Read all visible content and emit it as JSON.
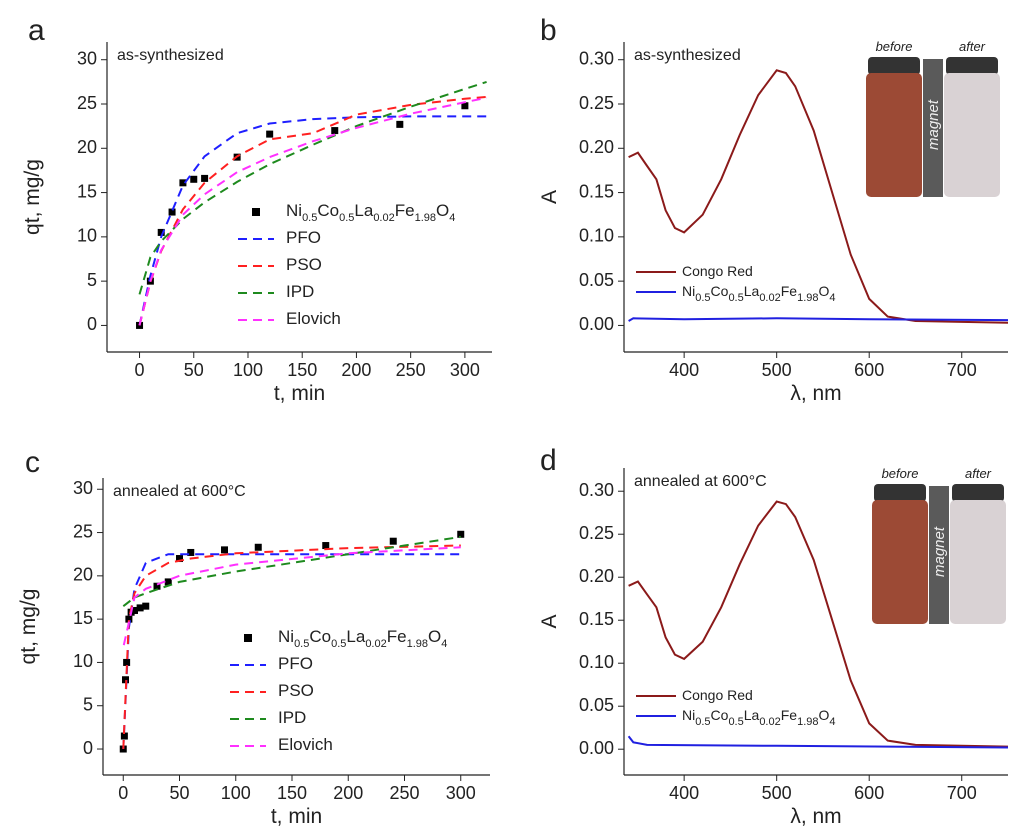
{
  "chart_data": [
    {
      "type": "scatter",
      "label": "a",
      "title": "as-synthesized",
      "xlabel": "t, min",
      "ylabel": "qt, mg/g",
      "xlim": [
        -30,
        325
      ],
      "ylim": [
        -3,
        32
      ],
      "xticks": [
        0,
        50,
        100,
        150,
        200,
        250,
        300
      ],
      "yticks": [
        0,
        5,
        10,
        15,
        20,
        25,
        30
      ],
      "series": [
        {
          "name": "Ni0.5Co0.5La0.02Fe1.98O4",
          "style": "markers",
          "color": "#000000",
          "x": [
            0,
            10,
            20,
            30,
            40,
            50,
            60,
            90,
            120,
            180,
            240,
            300
          ],
          "values": [
            0,
            5,
            10.5,
            12.8,
            16.1,
            16.5,
            16.6,
            19,
            21.6,
            22,
            22.7,
            24.8
          ]
        },
        {
          "name": "PFO",
          "style": "dashed",
          "color": "#1f1fff",
          "x": [
            0,
            10,
            20,
            40,
            60,
            90,
            120,
            160,
            200,
            250,
            300,
            320
          ],
          "values": [
            0,
            5.6,
            10,
            15.8,
            19.1,
            21.7,
            22.8,
            23.3,
            23.5,
            23.6,
            23.6,
            23.6
          ]
        },
        {
          "name": "PSO",
          "style": "dashed",
          "color": "#ff2020",
          "x": [
            0,
            10,
            20,
            40,
            60,
            90,
            120,
            160,
            200,
            250,
            300,
            320
          ],
          "values": [
            0,
            4.9,
            8.4,
            13.1,
            16.1,
            19.1,
            21,
            21.7,
            23.8,
            24.9,
            25.6,
            25.8
          ]
        },
        {
          "name": "IPD",
          "style": "dashed",
          "color": "#1e8a1e",
          "x": [
            0,
            10,
            20,
            40,
            60,
            90,
            120,
            160,
            200,
            250,
            300,
            320
          ],
          "values": [
            3.5,
            7.7,
            9.5,
            12,
            13.9,
            16.2,
            18.2,
            20.4,
            22.5,
            24.7,
            26.7,
            27.5
          ]
        },
        {
          "name": "Elovich",
          "style": "dashed",
          "color": "#ff30ff",
          "x": [
            0,
            10,
            20,
            40,
            60,
            90,
            120,
            160,
            200,
            250,
            300,
            320
          ],
          "values": [
            0,
            5,
            8.5,
            12.5,
            14.8,
            17.3,
            19,
            20.8,
            22.3,
            23.9,
            25.2,
            25.7
          ]
        }
      ]
    },
    {
      "type": "line",
      "label": "b",
      "title": "as-synthesized",
      "xlabel": "λ, nm",
      "ylabel": "A",
      "inset_labels": [
        "before",
        "magnet",
        "after"
      ],
      "xlim": [
        335,
        750
      ],
      "ylim": [
        -0.03,
        0.32
      ],
      "xticks": [
        400,
        500,
        600,
        700
      ],
      "yticks": [
        {
          "value": 0,
          "label": "0.00"
        },
        {
          "value": 0.05,
          "label": "0.05"
        },
        {
          "value": 0.1,
          "label": "0.10"
        },
        {
          "value": 0.15,
          "label": "0.15"
        },
        {
          "value": 0.2,
          "label": "0.20"
        },
        {
          "value": 0.25,
          "label": "0.25"
        },
        {
          "value": 0.3,
          "label": "0.30"
        }
      ],
      "series": [
        {
          "name": "Congo Red",
          "style": "solid",
          "color": "#8b1a1a",
          "x": [
            340,
            350,
            360,
            370,
            380,
            390,
            400,
            420,
            440,
            460,
            480,
            500,
            510,
            520,
            540,
            560,
            580,
            600,
            620,
            650,
            700,
            750
          ],
          "values": [
            0.19,
            0.195,
            0.18,
            0.165,
            0.13,
            0.11,
            0.105,
            0.125,
            0.165,
            0.215,
            0.26,
            0.288,
            0.285,
            0.27,
            0.22,
            0.15,
            0.08,
            0.03,
            0.01,
            0.005,
            0.004,
            0.003
          ]
        },
        {
          "name": "Ni0.5Co0.5La0.02Fe1.98O4",
          "style": "solid",
          "color": "#2020e0",
          "x": [
            340,
            345,
            400,
            500,
            600,
            750
          ],
          "values": [
            0.005,
            0.008,
            0.007,
            0.008,
            0.007,
            0.006
          ]
        }
      ]
    },
    {
      "type": "scatter",
      "label": "c",
      "title": "annealed at 600°C",
      "xlabel": "t, min",
      "ylabel": "qt, mg/g",
      "xlim": [
        -18,
        326
      ],
      "ylim": [
        -3,
        31.3
      ],
      "xticks": [
        0,
        50,
        100,
        150,
        200,
        250,
        300
      ],
      "yticks": [
        0,
        5,
        10,
        15,
        20,
        25,
        30
      ],
      "series": [
        {
          "name": "Ni0.5Co0.5La0.02Fe1.98O4",
          "style": "markers",
          "color": "#000000",
          "x": [
            0,
            1,
            2,
            3,
            5,
            7,
            10,
            15,
            20,
            30,
            40,
            50,
            60,
            90,
            120,
            180,
            240,
            300
          ],
          "values": [
            0,
            1.5,
            8,
            10,
            15,
            15.8,
            16,
            16.3,
            16.5,
            18.8,
            19.3,
            22,
            22.7,
            23,
            23.3,
            23.5,
            24,
            24.8
          ]
        },
        {
          "name": "PFO",
          "style": "dashed",
          "color": "#1f1fff",
          "x": [
            0,
            5,
            10,
            20,
            40,
            60,
            100,
            200,
            300
          ],
          "values": [
            0,
            14,
            18.5,
            21.5,
            22.5,
            22.5,
            22.5,
            22.5,
            22.5
          ]
        },
        {
          "name": "PSO",
          "style": "dashed",
          "color": "#ff2020",
          "x": [
            0,
            5,
            10,
            20,
            40,
            60,
            100,
            200,
            300
          ],
          "values": [
            0,
            15,
            18,
            20,
            21.5,
            22,
            22.6,
            23.2,
            23.5
          ]
        },
        {
          "name": "IPD",
          "style": "dashed",
          "color": "#1e8a1e",
          "x": [
            0,
            10,
            20,
            50,
            100,
            150,
            200,
            250,
            300
          ],
          "values": [
            16.5,
            17.5,
            18,
            19.3,
            20.5,
            21.5,
            22.5,
            23.5,
            24.5
          ]
        },
        {
          "name": "Elovich",
          "style": "dashed",
          "color": "#ff30ff",
          "x": [
            0.5,
            10,
            20,
            50,
            100,
            200,
            300
          ],
          "values": [
            12,
            17.5,
            18.5,
            20,
            21.3,
            22.6,
            23.3
          ]
        }
      ]
    },
    {
      "type": "line",
      "label": "d",
      "title": "annealed at 600°C",
      "xlabel": "λ, nm",
      "ylabel": "A",
      "inset_labels": [
        "before",
        "magnet",
        "after"
      ],
      "xlim": [
        335,
        750
      ],
      "ylim": [
        -0.03,
        0.327
      ],
      "xticks": [
        400,
        500,
        600,
        700
      ],
      "yticks": [
        {
          "value": 0,
          "label": "0.00"
        },
        {
          "value": 0.05,
          "label": "0.05"
        },
        {
          "value": 0.1,
          "label": "0.10"
        },
        {
          "value": 0.15,
          "label": "0.15"
        },
        {
          "value": 0.2,
          "label": "0.20"
        },
        {
          "value": 0.25,
          "label": "0.25"
        },
        {
          "value": 0.3,
          "label": "0.30"
        }
      ],
      "series": [
        {
          "name": "Congo Red",
          "style": "solid",
          "color": "#8b1a1a",
          "x": [
            340,
            350,
            360,
            370,
            380,
            390,
            400,
            420,
            440,
            460,
            480,
            500,
            510,
            520,
            540,
            560,
            580,
            600,
            620,
            650,
            700,
            750
          ],
          "values": [
            0.19,
            0.195,
            0.18,
            0.165,
            0.13,
            0.11,
            0.105,
            0.125,
            0.165,
            0.215,
            0.26,
            0.288,
            0.285,
            0.27,
            0.22,
            0.15,
            0.08,
            0.03,
            0.01,
            0.005,
            0.004,
            0.003
          ]
        },
        {
          "name": "Ni0.5Co0.5La0.02Fe1.98O4",
          "style": "solid",
          "color": "#2020e0",
          "x": [
            340,
            345,
            360,
            500,
            750
          ],
          "values": [
            0.015,
            0.008,
            0.005,
            0.004,
            0.002
          ]
        }
      ]
    }
  ]
}
